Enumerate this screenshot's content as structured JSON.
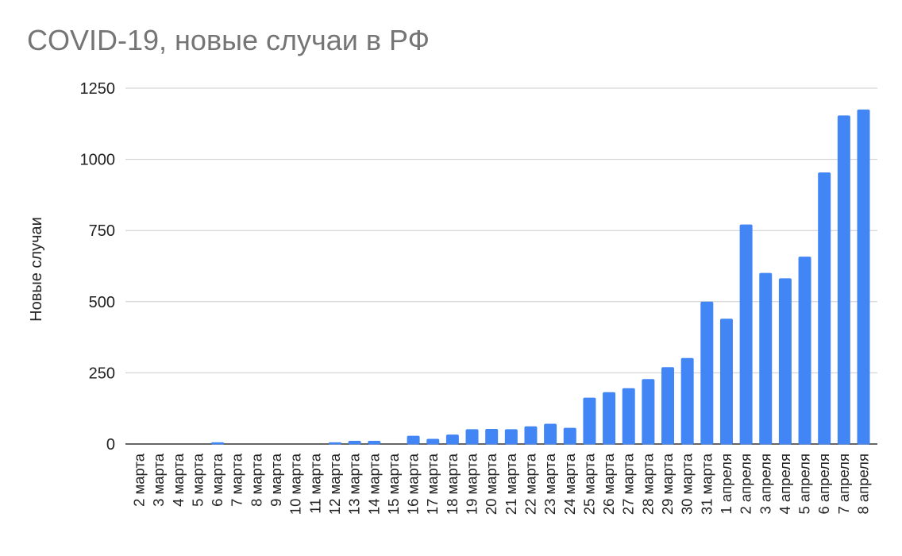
{
  "chart_data": {
    "type": "bar",
    "title": "COVID-19, новые случаи в РФ",
    "xlabel": "",
    "ylabel": "Новые случаи",
    "ylim": [
      0,
      1250
    ],
    "yticks": [
      0,
      250,
      500,
      750,
      1000,
      1250
    ],
    "grid": true,
    "bar_color": "#4285f4",
    "categories": [
      "2 марта",
      "3 марта",
      "4 марта",
      "5 марта",
      "6 марта",
      "7 марта",
      "8 марта",
      "9 марта",
      "10 марта",
      "11 марта",
      "12 марта",
      "13 марта",
      "14 марта",
      "15 марта",
      "16 марта",
      "17 марта",
      "18 марта",
      "19 марта",
      "20 марта",
      "21 марта",
      "22 марта",
      "23 марта",
      "24 марта",
      "25 марта",
      "26 марта",
      "27 марта",
      "28 марта",
      "29 марта",
      "30 марта",
      "31 марта",
      "1 апреля",
      "2 апреля",
      "3 апреля",
      "4 апреля",
      "5 апреля",
      "6 апреля",
      "7 апреля",
      "8 апреля"
    ],
    "values": [
      0,
      0,
      0,
      0,
      6,
      0,
      0,
      0,
      0,
      0,
      6,
      11,
      11,
      0,
      29,
      18,
      33,
      52,
      53,
      52,
      62,
      71,
      57,
      163,
      182,
      196,
      228,
      270,
      302,
      500,
      440,
      771,
      601,
      582,
      658,
      954,
      1154,
      1175
    ]
  }
}
